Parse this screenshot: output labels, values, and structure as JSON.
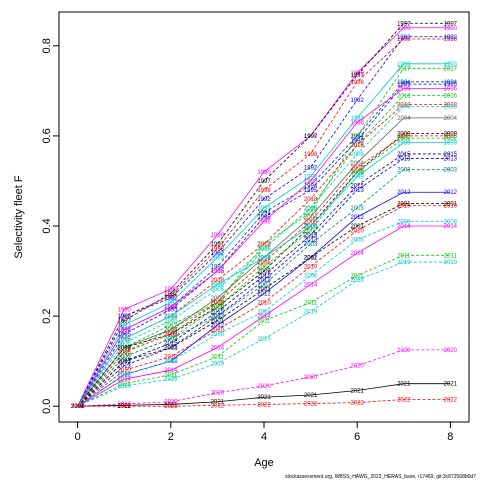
{
  "chart_data": {
    "type": "line",
    "xlabel": "Age",
    "ylabel": "Selectivity fleet F",
    "xlim": [
      -0.4,
      8.4
    ],
    "ylim": [
      -0.035,
      0.875
    ],
    "x_ticks": [
      "0",
      "2",
      "4",
      "6",
      "8"
    ],
    "y_ticks": [
      "0.0",
      "0.2",
      "0.4",
      "0.6",
      "0.8"
    ],
    "x": [
      0,
      1,
      2,
      3,
      4,
      5,
      6,
      7,
      8
    ],
    "footer": "stockassessment.org, WBSS_HAWG_2023_HERAS_base, r17469, git:3c872568b0d7",
    "series": [
      {
        "name": "1990",
        "color": "#ff00ff",
        "values": [
          0.0,
          0.215,
          0.26,
          0.38,
          0.52,
          0.6,
          0.74,
          0.84,
          0.84
        ]
      },
      {
        "name": "1997",
        "color": "#000000",
        "values": [
          0.0,
          0.19,
          0.25,
          0.36,
          0.5,
          0.6,
          0.735,
          0.85,
          0.85
        ]
      },
      {
        "name": "1998",
        "color": "#ff0000",
        "values": [
          0.0,
          0.2,
          0.245,
          0.35,
          0.48,
          0.56,
          0.72,
          0.815,
          0.815
        ]
      },
      {
        "name": "1992",
        "color": "#0000ff",
        "values": [
          0.0,
          0.2,
          0.24,
          0.34,
          0.46,
          0.53,
          0.68,
          0.82,
          0.82
        ]
      },
      {
        "name": "1993",
        "color": "#00cccc",
        "values": [
          0.0,
          0.18,
          0.23,
          0.33,
          0.44,
          0.51,
          0.64,
          0.76,
          0.76
        ]
      },
      {
        "name": "2017",
        "color": "#00cc00",
        "values": [
          0.0,
          0.13,
          0.18,
          0.23,
          0.36,
          0.43,
          0.6,
          0.75,
          0.75
        ]
      },
      {
        "name": "1994",
        "color": "#004080",
        "values": [
          0.0,
          0.17,
          0.22,
          0.31,
          0.43,
          0.49,
          0.6,
          0.72,
          0.72
        ]
      },
      {
        "name": "1995",
        "color": "#0000ff",
        "values": [
          0.0,
          0.16,
          0.215,
          0.3,
          0.42,
          0.48,
          0.59,
          0.715,
          0.715
        ]
      },
      {
        "name": "1996",
        "color": "#ff00ff",
        "values": [
          0.0,
          0.17,
          0.22,
          0.3,
          0.41,
          0.5,
          0.63,
          0.705,
          0.705
        ]
      },
      {
        "name": "2016",
        "color": "#00cc00",
        "values": [
          0.0,
          0.12,
          0.17,
          0.23,
          0.35,
          0.44,
          0.58,
          0.69,
          0.69
        ]
      },
      {
        "name": "2018",
        "color": "#ff0000",
        "values": [
          0.0,
          0.15,
          0.2,
          0.28,
          0.36,
          0.46,
          0.58,
          0.67,
          0.67
        ]
      },
      {
        "name": "2006",
        "color": "#00cccc",
        "values": [
          0.0,
          0.14,
          0.19,
          0.26,
          0.35,
          0.44,
          0.56,
          0.665,
          0.665
        ]
      },
      {
        "name": "2004",
        "color": "#606060",
        "values": [
          0.0,
          0.13,
          0.17,
          0.24,
          0.33,
          0.42,
          0.54,
          0.64,
          0.64
        ]
      },
      {
        "name": "2009",
        "color": "#000000",
        "values": [
          0.0,
          0.13,
          0.16,
          0.22,
          0.3,
          0.4,
          0.52,
          0.605,
          0.605
        ]
      },
      {
        "name": "2005",
        "color": "#ff0000",
        "values": [
          0.0,
          0.12,
          0.16,
          0.23,
          0.32,
          0.41,
          0.53,
          0.6,
          0.6
        ]
      },
      {
        "name": "2002",
        "color": "#00cc00",
        "values": [
          0.0,
          0.11,
          0.15,
          0.22,
          0.31,
          0.39,
          0.52,
          0.595,
          0.595
        ]
      },
      {
        "name": "1999",
        "color": "#00cccc",
        "values": [
          0.0,
          0.15,
          0.2,
          0.27,
          0.33,
          0.4,
          0.51,
          0.585,
          0.585
        ]
      },
      {
        "name": "2015",
        "color": "#000080",
        "values": [
          0.0,
          0.1,
          0.14,
          0.21,
          0.29,
          0.38,
          0.49,
          0.56,
          0.56
        ]
      },
      {
        "name": "2013",
        "color": "#0000ff",
        "values": [
          0.0,
          0.09,
          0.13,
          0.2,
          0.28,
          0.37,
          0.48,
          0.55,
          0.55
        ]
      },
      {
        "name": "2003",
        "color": "#008080",
        "values": [
          0.0,
          0.11,
          0.15,
          0.2,
          0.27,
          0.36,
          0.44,
          0.525,
          0.525
        ]
      },
      {
        "name": "2012",
        "color": "#0000ff",
        "values": [
          0.0,
          0.07,
          0.1,
          0.18,
          0.25,
          0.33,
          0.42,
          0.475,
          0.475
        ]
      },
      {
        "name": "2001",
        "color": "#000000",
        "values": [
          0.0,
          0.1,
          0.13,
          0.19,
          0.26,
          0.33,
          0.4,
          0.45,
          0.45
        ]
      },
      {
        "name": "2010",
        "color": "#ff0000",
        "values": [
          0.0,
          0.08,
          0.11,
          0.17,
          0.23,
          0.31,
          0.39,
          0.445,
          0.445
        ]
      },
      {
        "name": "2008",
        "color": "#00cccc",
        "values": [
          0.0,
          0.07,
          0.1,
          0.16,
          0.21,
          0.29,
          0.37,
          0.41,
          0.41
        ]
      },
      {
        "name": "2014",
        "color": "#ff00ff",
        "values": [
          0.0,
          0.06,
          0.08,
          0.13,
          0.2,
          0.27,
          0.34,
          0.4,
          0.4
        ]
      },
      {
        "name": "2011",
        "color": "#00cc00",
        "values": [
          0.0,
          0.05,
          0.07,
          0.11,
          0.19,
          0.23,
          0.29,
          0.335,
          0.335
        ]
      },
      {
        "name": "2019",
        "color": "#00cccc",
        "values": [
          0.0,
          0.045,
          0.06,
          0.095,
          0.15,
          0.21,
          0.28,
          0.32,
          0.32
        ]
      },
      {
        "name": "2020",
        "color": "#ff00ff",
        "values": [
          0.0,
          0.005,
          0.01,
          0.03,
          0.045,
          0.065,
          0.09,
          0.125,
          0.125
        ]
      },
      {
        "name": "2021",
        "color": "#000000",
        "values": [
          0.0,
          0.002,
          0.004,
          0.01,
          0.02,
          0.025,
          0.035,
          0.05,
          0.05
        ]
      },
      {
        "name": "2022",
        "color": "#ff0000",
        "values": [
          0.0,
          0.0,
          0.0,
          0.002,
          0.004,
          0.006,
          0.008,
          0.015,
          0.015
        ]
      }
    ]
  }
}
